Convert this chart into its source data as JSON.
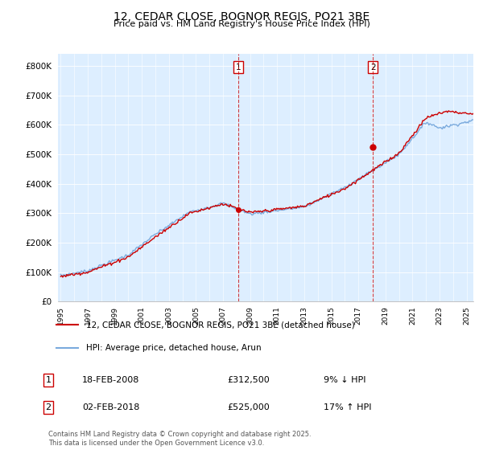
{
  "title": "12, CEDAR CLOSE, BOGNOR REGIS, PO21 3BE",
  "subtitle": "Price paid vs. HM Land Registry's House Price Index (HPI)",
  "ylim": [
    0,
    840000
  ],
  "yticks": [
    0,
    100000,
    200000,
    300000,
    400000,
    500000,
    600000,
    700000,
    800000
  ],
  "ytick_labels": [
    "£0",
    "£100K",
    "£200K",
    "£300K",
    "£400K",
    "£500K",
    "£600K",
    "£700K",
    "£800K"
  ],
  "hpi_color": "#7aaadd",
  "price_color": "#cc0000",
  "vline_color": "#cc0000",
  "purchase1_date": 2008.12,
  "purchase1_price": 312500,
  "purchase1_label": "1",
  "purchase1_text": "18-FEB-2008",
  "purchase1_amount": "£312,500",
  "purchase1_hpi": "9% ↓ HPI",
  "purchase2_date": 2018.08,
  "purchase2_price": 525000,
  "purchase2_label": "2",
  "purchase2_text": "02-FEB-2018",
  "purchase2_amount": "£525,000",
  "purchase2_hpi": "17% ↑ HPI",
  "legend_line1": "12, CEDAR CLOSE, BOGNOR REGIS, PO21 3BE (detached house)",
  "legend_line2": "HPI: Average price, detached house, Arun",
  "footer": "Contains HM Land Registry data © Crown copyright and database right 2025.\nThis data is licensed under the Open Government Licence v3.0.",
  "background_color": "#ffffff",
  "plot_bg_color": "#ddeeff",
  "xlim_start": 1995,
  "xlim_end": 2026
}
